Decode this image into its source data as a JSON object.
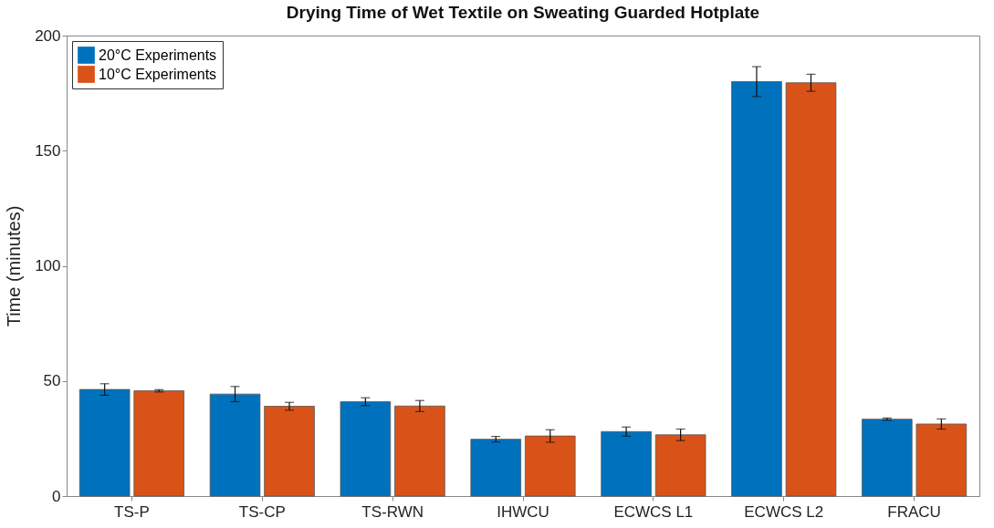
{
  "chart_data": {
    "type": "bar",
    "title": "Drying Time of Wet Textile on Sweating Guarded Hotplate",
    "ylabel": "Time (minutes)",
    "categories": [
      "TS-P",
      "TS-CP",
      "TS-RWN",
      "IHWCU",
      "ECWCS L1",
      "ECWCS L2",
      "FRACU"
    ],
    "series": [
      {
        "name": "20°C Experiments",
        "color": "#0072bd",
        "values": [
          46.3,
          44.3,
          41.0,
          24.7,
          28.0,
          180,
          33.4
        ],
        "errors": [
          2.5,
          3.3,
          1.7,
          1.2,
          2.0,
          6.5,
          0.5
        ]
      },
      {
        "name": "10°C Experiments",
        "color": "#d95319",
        "values": [
          45.7,
          39.0,
          39.1,
          26.1,
          26.6,
          179.5,
          31.3
        ],
        "errors": [
          0.5,
          1.7,
          2.4,
          2.7,
          2.5,
          3.7,
          2.2
        ]
      }
    ],
    "ylim": [
      0,
      200
    ],
    "yticks": [
      0,
      50,
      100,
      150,
      200
    ],
    "grid": false,
    "legend": "top left"
  }
}
